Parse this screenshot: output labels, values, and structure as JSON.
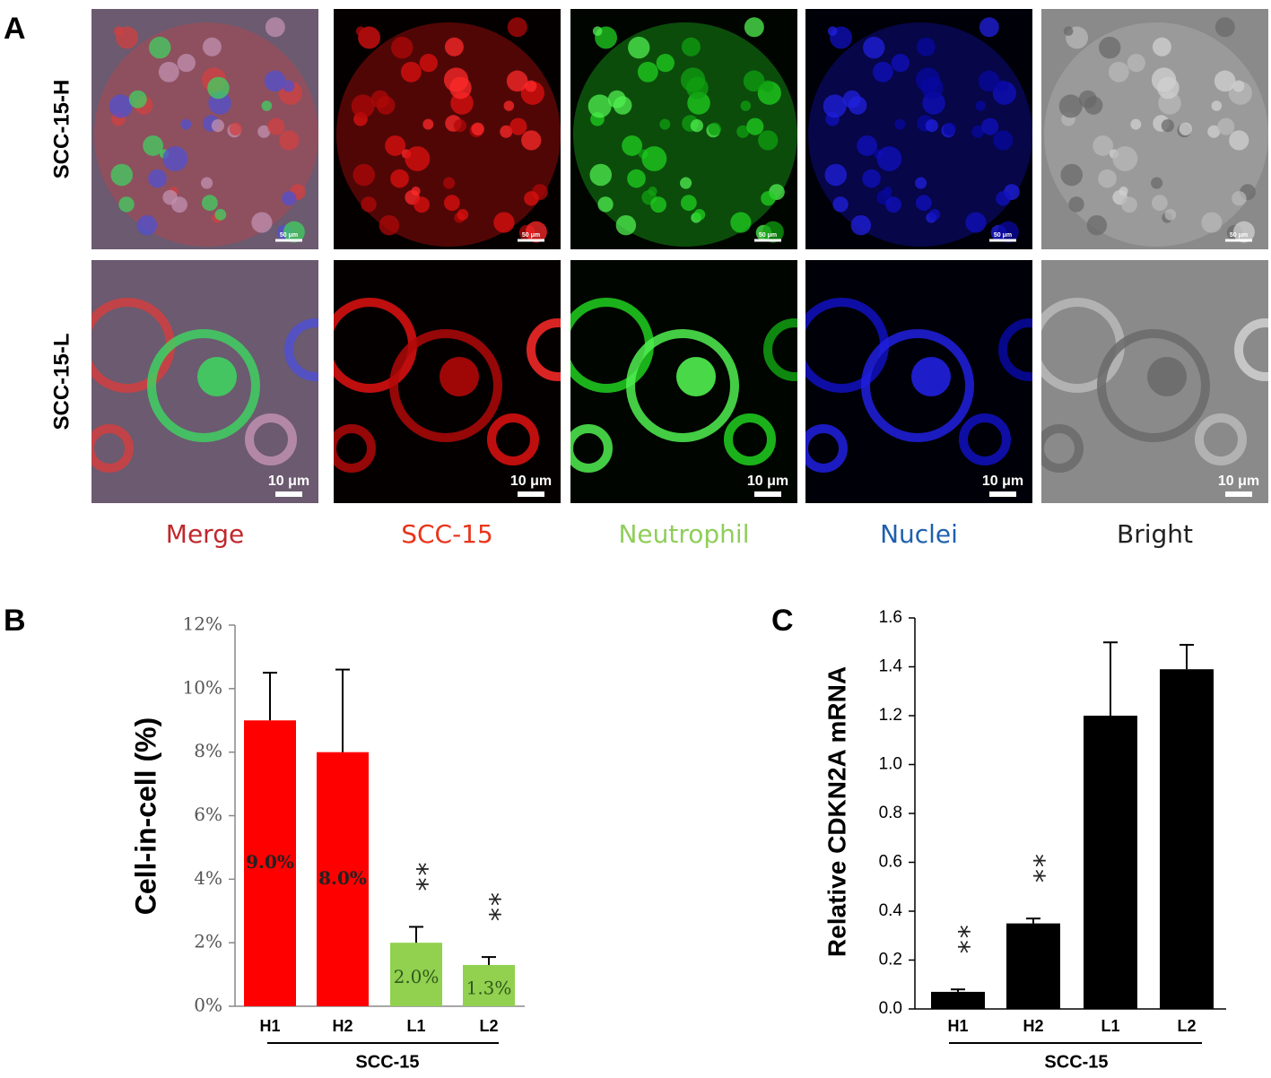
{
  "image_panel": {
    "panel_label": "A",
    "rows": [
      "SCC-15-H",
      "SCC-15-L"
    ],
    "columns": [
      "Merge",
      "SCC-15",
      "Neutrophil",
      "Nuclei",
      "Bright"
    ],
    "column_colors": [
      "#c0282d",
      "#e8341c",
      "#8fce5a",
      "#1f5fae",
      "#222222"
    ],
    "scale_bars": [
      "50 μm",
      "10 μm"
    ]
  },
  "chart_data": [
    {
      "type": "bar",
      "panel_label": "B",
      "ylabel": "Cell-in-cell (%)",
      "categories": [
        "H1",
        "H2",
        "L1",
        "L2"
      ],
      "group_label": "SCC-15",
      "values": [
        9.0,
        8.0,
        2.0,
        1.3
      ],
      "value_labels": [
        "9.0%",
        "8.0%",
        "2.0%",
        "1.3%"
      ],
      "errors": [
        1.5,
        2.6,
        0.5,
        0.25
      ],
      "colors": [
        "#ff0000",
        "#ff0000",
        "#92d050",
        "#92d050"
      ],
      "significance": [
        null,
        null,
        "**",
        "**"
      ],
      "ylim": [
        0,
        12
      ],
      "yticks": [
        {
          "value": 0,
          "label": "0%"
        },
        {
          "value": 2,
          "label": "2%"
        },
        {
          "value": 4,
          "label": "4%"
        },
        {
          "value": 6,
          "label": "6%"
        },
        {
          "value": 8,
          "label": "8%"
        },
        {
          "value": 10,
          "label": "10%"
        },
        {
          "value": 12,
          "label": "12%"
        }
      ],
      "grid": false
    },
    {
      "type": "bar",
      "panel_label": "C",
      "ylabel": "Relative CDKN2A mRNA",
      "categories": [
        "H1",
        "H2",
        "L1",
        "L2"
      ],
      "group_label": "SCC-15",
      "values": [
        0.07,
        0.35,
        1.2,
        1.39
      ],
      "errors": [
        0.01,
        0.02,
        0.3,
        0.1
      ],
      "colors": [
        "#000000",
        "#000000",
        "#000000",
        "#000000"
      ],
      "significance": [
        "**",
        "**",
        null,
        null
      ],
      "ylim": [
        0,
        1.6
      ],
      "yticks": [
        {
          "value": 0,
          "label": "0.0"
        },
        0.2,
        0.4,
        0.6,
        0.8,
        {
          "value": 1,
          "label": "1.0"
        },
        1.2,
        1.4,
        1.6
      ],
      "grid": false
    }
  ]
}
